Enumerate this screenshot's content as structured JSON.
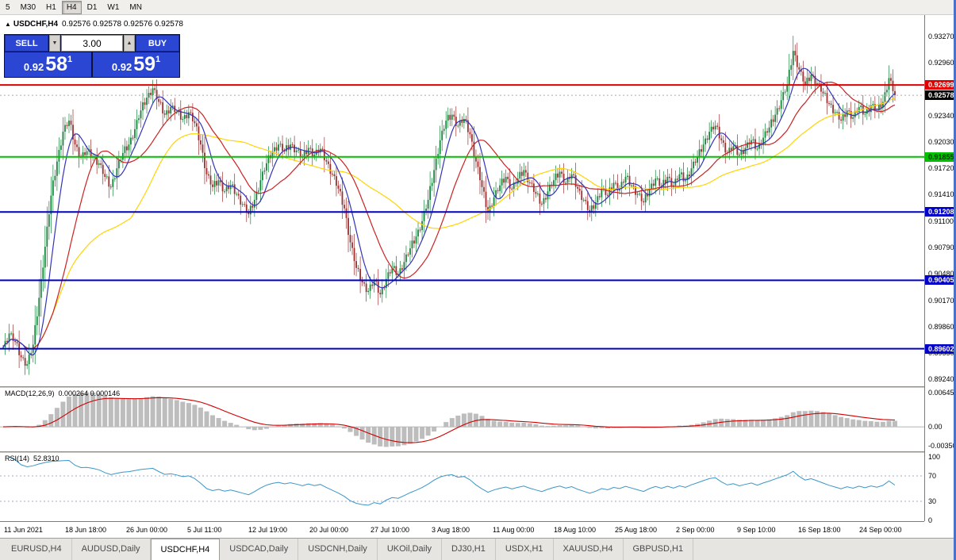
{
  "toolbar": {
    "timeframes": [
      "5",
      "M30",
      "H1",
      "H4",
      "D1",
      "W1",
      "MN"
    ],
    "active_timeframe": "H4"
  },
  "chart_header": {
    "collapse_arrow": "▲",
    "title": "USDCHF,H4",
    "ohlc": "0.92576 0.92578 0.92576 0.92578"
  },
  "trade_panel": {
    "sell_label": "SELL",
    "buy_label": "BUY",
    "volume": "3.00",
    "volume_down_icon": "▼",
    "volume_up_icon": "▲",
    "sell_price_prefix": "0.92",
    "sell_price_big": "58",
    "sell_price_sup": "1",
    "buy_price_prefix": "0.92",
    "buy_price_big": "59",
    "buy_price_sup": "1"
  },
  "price_axis": {
    "ticks": [
      0.9327,
      0.9296,
      0.9234,
      0.9203,
      0.9172,
      0.9141,
      0.911,
      0.9079,
      0.9048,
      0.9017,
      0.8986,
      0.8955,
      0.8924
    ],
    "badges": [
      {
        "text": "0.92699",
        "price": 0.92699,
        "bg": "#e00000",
        "fg": "#ffffff"
      },
      {
        "text": "0.92578",
        "price": 0.92578,
        "bg": "#000000",
        "fg": "#ffffff"
      },
      {
        "text": "0.91855",
        "price": 0.91855,
        "bg": "#00c000",
        "fg": "#003300"
      },
      {
        "text": "0.91208",
        "price": 0.91208,
        "bg": "#0000c8",
        "fg": "#ffffff"
      },
      {
        "text": "0.90405",
        "price": 0.90405,
        "bg": "#0000c8",
        "fg": "#ffffff"
      },
      {
        "text": "0.89602",
        "price": 0.89602,
        "bg": "#0000c8",
        "fg": "#ffffff"
      }
    ]
  },
  "chart_data": {
    "type": "candlestick",
    "symbol": "USDCHF",
    "timeframe": "H4",
    "y_range": [
      0.8916,
      0.9352
    ],
    "current_price": 0.92578,
    "closes": [
      0.8962,
      0.8978,
      0.8968,
      0.895,
      0.8942,
      0.8965,
      0.902,
      0.908,
      0.914,
      0.918,
      0.9215,
      0.9228,
      0.92,
      0.9185,
      0.9192,
      0.9186,
      0.9178,
      0.9162,
      0.915,
      0.9172,
      0.919,
      0.92,
      0.9218,
      0.924,
      0.9255,
      0.9266,
      0.925,
      0.9235,
      0.9244,
      0.9238,
      0.923,
      0.9238,
      0.9225,
      0.92,
      0.9165,
      0.915,
      0.9158,
      0.9145,
      0.9152,
      0.9142,
      0.913,
      0.9118,
      0.9135,
      0.9158,
      0.9178,
      0.9192,
      0.92,
      0.9192,
      0.92,
      0.9193,
      0.9185,
      0.9196,
      0.9188,
      0.9195,
      0.918,
      0.9165,
      0.9148,
      0.9125,
      0.9085,
      0.9055,
      0.9038,
      0.9028,
      0.904,
      0.9024,
      0.9042,
      0.9055,
      0.9048,
      0.9062,
      0.9078,
      0.9092,
      0.911,
      0.9135,
      0.917,
      0.9205,
      0.9228,
      0.9235,
      0.9222,
      0.923,
      0.9212,
      0.918,
      0.915,
      0.912,
      0.9138,
      0.9152,
      0.9162,
      0.9148,
      0.916,
      0.917,
      0.9155,
      0.9142,
      0.913,
      0.9145,
      0.9158,
      0.9168,
      0.9155,
      0.9165,
      0.9148,
      0.9135,
      0.912,
      0.9132,
      0.9148,
      0.914,
      0.9155,
      0.9148,
      0.9162,
      0.9152,
      0.9142,
      0.9132,
      0.9148,
      0.916,
      0.915,
      0.9162,
      0.9152,
      0.9165,
      0.9158,
      0.9172,
      0.9185,
      0.92,
      0.9215,
      0.9222,
      0.9205,
      0.919,
      0.9198,
      0.9188,
      0.9196,
      0.9205,
      0.9195,
      0.9208,
      0.922,
      0.9235,
      0.9252,
      0.927,
      0.931,
      0.9288,
      0.927,
      0.9282,
      0.9272,
      0.926,
      0.9248,
      0.9238,
      0.9228,
      0.924,
      0.9232,
      0.9244,
      0.9236,
      0.9246,
      0.924,
      0.925,
      0.9278,
      0.9258
    ],
    "hlines": [
      {
        "price": 0.92699,
        "color": "#e00000"
      },
      {
        "price": 0.91855,
        "color": "#00c000"
      },
      {
        "price": 0.91208,
        "color": "#0000c8"
      },
      {
        "price": 0.90405,
        "color": "#0000c8"
      },
      {
        "price": 0.89602,
        "color": "#0000c8"
      }
    ],
    "candle_colors": {
      "up": "#17853c",
      "down": "#9c3030"
    },
    "ma_lines": [
      {
        "period": 9,
        "color": "#3333bb"
      },
      {
        "period": 26,
        "color": "#cc2222"
      },
      {
        "period": 65,
        "color": "#ffd400"
      }
    ],
    "macd": {
      "label": "MACD(12,26,9)",
      "values": "0.000264 0.000146",
      "axis_labels": [
        "0.00645",
        "0.00",
        "-0.00350"
      ],
      "axis_values": [
        0.00645,
        0,
        -0.0035
      ],
      "range": [
        -0.0046,
        0.0073
      ],
      "histogram_color": "#bdbdbd",
      "signal_color": "#d00000"
    },
    "rsi": {
      "label": "RSI(14)",
      "value": "52.8310",
      "period": 14,
      "axis_labels": [
        "100",
        "70",
        "30",
        "0"
      ],
      "axis_values": [
        100,
        70,
        30,
        0
      ],
      "levels": [
        70,
        30
      ],
      "line_color": "#3a96c8"
    },
    "x_labels": [
      "11 Jun 2021",
      "18 Jun 18:00",
      "26 Jun 00:00",
      "5 Jul 11:00",
      "12 Jul 19:00",
      "20 Jul 00:00",
      "27 Jul 10:00",
      "3 Aug 18:00",
      "11 Aug 00:00",
      "18 Aug 10:00",
      "25 Aug 18:00",
      "2 Sep 00:00",
      "9 Sep 10:00",
      "16 Sep 18:00",
      "24 Sep 00:00"
    ]
  },
  "tabbar": {
    "tabs": [
      "EURUSD,H4",
      "AUDUSD,Daily",
      "USDCHF,H4",
      "USDCAD,Daily",
      "USDCNH,Daily",
      "UKOil,Daily",
      "DJ30,H1",
      "USDX,H1",
      "XAUUSD,H4",
      "GBPUSD,H1"
    ],
    "active_tab": "USDCHF,H4"
  }
}
